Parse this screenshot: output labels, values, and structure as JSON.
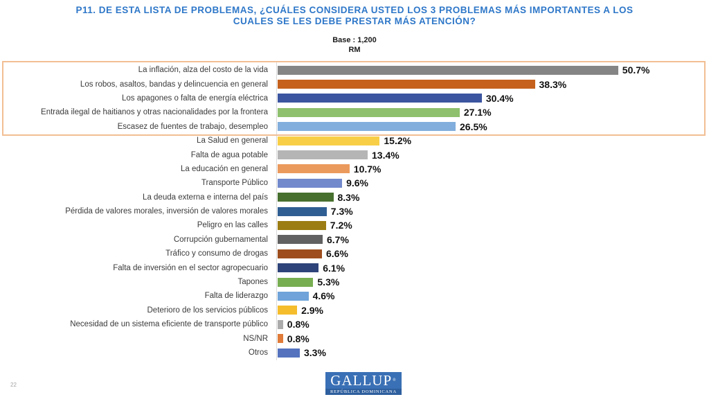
{
  "header": {
    "title_line1": "P11. DE ESTA LISTA DE PROBLEMAS, ¿CUÁLES CONSIDERA USTED LOS 3 PROBLEMAS MÁS IMPORTANTES A LOS",
    "title_line2": "CUALES SE LES DEBE PRESTAR MÁS ATENCIÓN?",
    "base_label": "Base : 1,200",
    "region_label": "RM"
  },
  "colors": {
    "title_blue": "#2E77C8",
    "highlight_border": "#F2BE93",
    "logo_blue": "#3A70B5",
    "logo_strip_blue": "#2E5F9E"
  },
  "chart_data": {
    "type": "bar",
    "orientation": "horizontal",
    "title": "P11. De esta lista de problemas, ¿cuáles considera usted los 3 problemas más importantes a los cuales se les debe prestar más atención?",
    "base": "Base : 1,200",
    "region": "RM",
    "xlim": [
      0,
      55
    ],
    "grid": false,
    "legend": "none",
    "highlighted_rows": [
      0,
      1,
      2,
      3,
      4
    ],
    "categories": [
      "La inflación, alza del costo de la vida",
      "Los robos, asaltos, bandas y delincuencia en general",
      "Los apagones o falta de energía eléctrica",
      "Entrada ilegal de haitianos y otras nacionalidades por la frontera",
      "Escasez de fuentes de trabajo, desempleo",
      "La Salud en general",
      "Falta de agua potable",
      "La educación en general",
      "Transporte Público",
      "La deuda externa e interna del país",
      "Pérdida de valores morales, inversión de valores morales",
      "Peligro en las calles",
      "Corrupción gubernamental",
      "Tráfico y consumo de drogas",
      "Falta de inversión en el sector agropecuario",
      "Tapones",
      "Falta de liderazgo",
      "Deterioro de los servicios públicos",
      "Necesidad de un sistema eficiente de transporte público",
      "NS/NR",
      "Otros"
    ],
    "values": [
      50.7,
      38.3,
      30.4,
      27.1,
      26.5,
      15.2,
      13.4,
      10.7,
      9.6,
      8.3,
      7.3,
      7.2,
      6.7,
      6.6,
      6.1,
      5.3,
      4.6,
      2.9,
      0.8,
      0.8,
      3.3
    ],
    "value_labels": [
      "50.7%",
      "38.3%",
      "30.4%",
      "27.1%",
      "26.5%",
      "15.2%",
      "13.4%",
      "10.7%",
      "9.6%",
      "8.3%",
      "7.3%",
      "7.2%",
      "6.7%",
      "6.6%",
      "6.1%",
      "5.3%",
      "4.6%",
      "2.9%",
      "0.8%",
      "0.8%",
      "3.3%"
    ],
    "bar_colors": [
      "#858585",
      "#C5611D",
      "#3B55A0",
      "#8EC06D",
      "#81AEDC",
      "#F7CE46",
      "#B5B5B5",
      "#EB9A5D",
      "#7289CC",
      "#47702F",
      "#2F5E93",
      "#9C7D13",
      "#616161",
      "#9E4E1E",
      "#2E4379",
      "#77AE51",
      "#6FA3D9",
      "#F5BC2C",
      "#ABABAB",
      "#E07B39",
      "#5472BE"
    ]
  },
  "footer": {
    "logo_text": "GALLUP",
    "logo_registered": "®",
    "logo_subtext": "REPÚBLICA DOMINICANA",
    "page_number": "22"
  }
}
